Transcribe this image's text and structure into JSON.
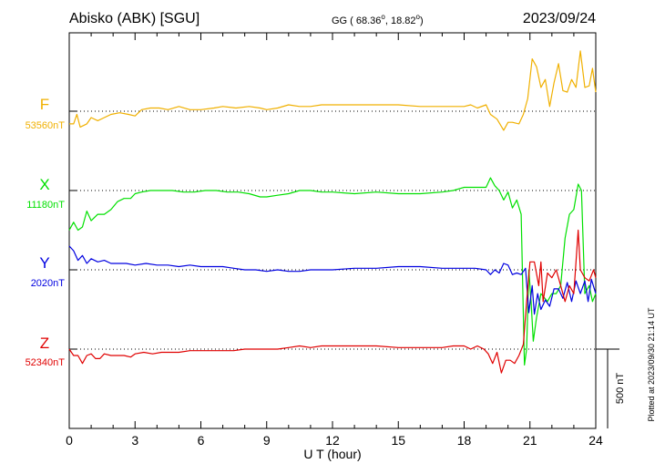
{
  "header": {
    "station": "Abisko (ABK)  [SGU]",
    "coords_prefix": "GG ( 68.36",
    "coords_mid": ",  18.82",
    "coords_suffix": ")",
    "degree": "o",
    "date": "2023/09/24"
  },
  "footer": {
    "plotted": "Plotted at 2023/09/30 21:14 UT",
    "scale_label": "500 nT"
  },
  "chart_data": {
    "type": "line",
    "title": "",
    "xlabel": "U T (hour)",
    "ylabel": "",
    "xlim": [
      0,
      24
    ],
    "x_ticks": [
      "0",
      "3",
      "6",
      "9",
      "12",
      "15",
      "18",
      "21",
      "24"
    ],
    "scale_bar_nT": 500,
    "grid": "dotted horizontal baselines, vertical tick marks every 3 h",
    "series": [
      {
        "name": "F",
        "baseline_label": "53560nT",
        "baseline_nT": 53560,
        "color": "#f0b000",
        "points": [
          [
            0,
            -80
          ],
          [
            0.2,
            -80
          ],
          [
            0.35,
            -20
          ],
          [
            0.5,
            -100
          ],
          [
            0.8,
            -80
          ],
          [
            1.0,
            -40
          ],
          [
            1.3,
            -60
          ],
          [
            1.6,
            -40
          ],
          [
            1.9,
            -20
          ],
          [
            2.3,
            -10
          ],
          [
            2.7,
            -20
          ],
          [
            3.0,
            -30
          ],
          [
            3.3,
            10
          ],
          [
            3.7,
            20
          ],
          [
            4.1,
            20
          ],
          [
            4.5,
            10
          ],
          [
            5.0,
            30
          ],
          [
            5.5,
            10
          ],
          [
            6.0,
            10
          ],
          [
            6.6,
            20
          ],
          [
            7.0,
            30
          ],
          [
            7.6,
            20
          ],
          [
            8.2,
            30
          ],
          [
            8.7,
            20
          ],
          [
            9.0,
            10
          ],
          [
            9.5,
            20
          ],
          [
            10.0,
            40
          ],
          [
            10.5,
            30
          ],
          [
            11.0,
            30
          ],
          [
            11.5,
            40
          ],
          [
            12.0,
            40
          ],
          [
            13,
            40
          ],
          [
            14,
            40
          ],
          [
            15,
            40
          ],
          [
            16,
            30
          ],
          [
            17,
            30
          ],
          [
            18,
            30
          ],
          [
            18.3,
            40
          ],
          [
            18.6,
            20
          ],
          [
            19.0,
            40
          ],
          [
            19.2,
            -20
          ],
          [
            19.5,
            -50
          ],
          [
            19.8,
            -120
          ],
          [
            20.0,
            -70
          ],
          [
            20.2,
            -70
          ],
          [
            20.5,
            -80
          ],
          [
            20.7,
            -20
          ],
          [
            20.9,
            80
          ],
          [
            21.1,
            330
          ],
          [
            21.3,
            280
          ],
          [
            21.5,
            150
          ],
          [
            21.7,
            200
          ],
          [
            21.9,
            30
          ],
          [
            22.1,
            180
          ],
          [
            22.3,
            300
          ],
          [
            22.5,
            130
          ],
          [
            22.7,
            120
          ],
          [
            22.9,
            200
          ],
          [
            23.1,
            150
          ],
          [
            23.3,
            380
          ],
          [
            23.5,
            150
          ],
          [
            23.7,
            160
          ],
          [
            23.85,
            270
          ],
          [
            24.0,
            120
          ]
        ]
      },
      {
        "name": "X",
        "baseline_label": "11180nT",
        "baseline_nT": 11180,
        "color": "#00e000",
        "points": [
          [
            0,
            -250
          ],
          [
            0.2,
            -200
          ],
          [
            0.4,
            -250
          ],
          [
            0.6,
            -230
          ],
          [
            0.8,
            -130
          ],
          [
            1.0,
            -190
          ],
          [
            1.3,
            -150
          ],
          [
            1.6,
            -150
          ],
          [
            1.9,
            -120
          ],
          [
            2.2,
            -70
          ],
          [
            2.5,
            -50
          ],
          [
            2.8,
            -50
          ],
          [
            3.0,
            -20
          ],
          [
            3.3,
            -10
          ],
          [
            3.7,
            0
          ],
          [
            4.2,
            0
          ],
          [
            4.7,
            0
          ],
          [
            5.2,
            -10
          ],
          [
            5.7,
            -10
          ],
          [
            6.2,
            0
          ],
          [
            6.7,
            0
          ],
          [
            7.2,
            -10
          ],
          [
            7.7,
            -10
          ],
          [
            8.2,
            -20
          ],
          [
            8.7,
            -40
          ],
          [
            9.0,
            -40
          ],
          [
            9.5,
            -30
          ],
          [
            10.0,
            -20
          ],
          [
            10.5,
            0
          ],
          [
            11.0,
            0
          ],
          [
            11.5,
            -10
          ],
          [
            12.0,
            -10
          ],
          [
            13,
            -20
          ],
          [
            14,
            -10
          ],
          [
            15,
            -20
          ],
          [
            16,
            -20
          ],
          [
            17,
            -10
          ],
          [
            17.5,
            0
          ],
          [
            18,
            20
          ],
          [
            18.5,
            20
          ],
          [
            19.0,
            20
          ],
          [
            19.2,
            80
          ],
          [
            19.4,
            30
          ],
          [
            19.6,
            0
          ],
          [
            19.8,
            -60
          ],
          [
            20.0,
            -10
          ],
          [
            20.2,
            -110
          ],
          [
            20.4,
            -60
          ],
          [
            20.6,
            -150
          ],
          [
            20.75,
            -1100
          ],
          [
            20.85,
            -1000
          ],
          [
            20.95,
            -500
          ],
          [
            21.05,
            -700
          ],
          [
            21.15,
            -950
          ],
          [
            21.3,
            -800
          ],
          [
            21.5,
            -650
          ],
          [
            21.8,
            -700
          ],
          [
            22.0,
            -650
          ],
          [
            22.2,
            -650
          ],
          [
            22.4,
            -600
          ],
          [
            22.6,
            -300
          ],
          [
            22.8,
            -150
          ],
          [
            23.0,
            -120
          ],
          [
            23.2,
            40
          ],
          [
            23.35,
            0
          ],
          [
            23.5,
            -650
          ],
          [
            23.7,
            -600
          ],
          [
            23.85,
            -700
          ],
          [
            24.0,
            -650
          ]
        ]
      },
      {
        "name": "Y",
        "baseline_label": "2020nT",
        "baseline_nT": 2020,
        "color": "#0000e0",
        "points": [
          [
            0,
            150
          ],
          [
            0.2,
            120
          ],
          [
            0.4,
            60
          ],
          [
            0.6,
            90
          ],
          [
            0.8,
            40
          ],
          [
            1.0,
            70
          ],
          [
            1.3,
            50
          ],
          [
            1.6,
            60
          ],
          [
            1.9,
            40
          ],
          [
            2.2,
            40
          ],
          [
            2.6,
            40
          ],
          [
            3.0,
            30
          ],
          [
            3.5,
            40
          ],
          [
            4.0,
            30
          ],
          [
            4.5,
            30
          ],
          [
            5.0,
            20
          ],
          [
            5.5,
            30
          ],
          [
            6.0,
            20
          ],
          [
            6.5,
            20
          ],
          [
            7.0,
            20
          ],
          [
            7.5,
            10
          ],
          [
            8.0,
            0
          ],
          [
            8.5,
            0
          ],
          [
            9.0,
            -10
          ],
          [
            9.5,
            0
          ],
          [
            10.0,
            -10
          ],
          [
            10.5,
            -10
          ],
          [
            11.0,
            0
          ],
          [
            11.5,
            0
          ],
          [
            12,
            0
          ],
          [
            13,
            10
          ],
          [
            14,
            10
          ],
          [
            15,
            20
          ],
          [
            16,
            20
          ],
          [
            17,
            10
          ],
          [
            18,
            10
          ],
          [
            18.5,
            10
          ],
          [
            19.0,
            0
          ],
          [
            19.2,
            -30
          ],
          [
            19.4,
            0
          ],
          [
            19.6,
            -20
          ],
          [
            19.8,
            40
          ],
          [
            20.0,
            30
          ],
          [
            20.2,
            -30
          ],
          [
            20.4,
            -20
          ],
          [
            20.6,
            -30
          ],
          [
            20.8,
            10
          ],
          [
            20.95,
            -270
          ],
          [
            21.1,
            -100
          ],
          [
            21.2,
            -280
          ],
          [
            21.35,
            -150
          ],
          [
            21.5,
            -250
          ],
          [
            21.7,
            -190
          ],
          [
            21.9,
            -230
          ],
          [
            22.1,
            -120
          ],
          [
            22.3,
            -120
          ],
          [
            22.5,
            -180
          ],
          [
            22.7,
            -80
          ],
          [
            22.9,
            -200
          ],
          [
            23.1,
            -70
          ],
          [
            23.3,
            -150
          ],
          [
            23.5,
            -70
          ],
          [
            23.65,
            -200
          ],
          [
            23.8,
            -60
          ],
          [
            24.0,
            -150
          ]
        ]
      },
      {
        "name": "Z",
        "baseline_label": "52340nT",
        "baseline_nT": 52340,
        "color": "#e00000",
        "points": [
          [
            0,
            0
          ],
          [
            0.2,
            -40
          ],
          [
            0.4,
            -40
          ],
          [
            0.6,
            -90
          ],
          [
            0.8,
            -40
          ],
          [
            1.0,
            -30
          ],
          [
            1.2,
            -60
          ],
          [
            1.4,
            -60
          ],
          [
            1.6,
            -30
          ],
          [
            1.9,
            -40
          ],
          [
            2.2,
            -40
          ],
          [
            2.5,
            -40
          ],
          [
            2.8,
            -50
          ],
          [
            3.0,
            -30
          ],
          [
            3.4,
            -20
          ],
          [
            3.8,
            -30
          ],
          [
            4.2,
            -20
          ],
          [
            4.6,
            -20
          ],
          [
            5.0,
            -20
          ],
          [
            5.5,
            -10
          ],
          [
            6.0,
            -10
          ],
          [
            6.5,
            -10
          ],
          [
            7.0,
            -10
          ],
          [
            7.5,
            -10
          ],
          [
            8,
            0
          ],
          [
            8.5,
            0
          ],
          [
            9,
            0
          ],
          [
            9.5,
            0
          ],
          [
            10,
            10
          ],
          [
            10.5,
            20
          ],
          [
            11,
            10
          ],
          [
            11.5,
            20
          ],
          [
            12,
            20
          ],
          [
            13,
            20
          ],
          [
            14,
            20
          ],
          [
            15,
            10
          ],
          [
            16,
            10
          ],
          [
            17,
            10
          ],
          [
            17.5,
            20
          ],
          [
            18,
            20
          ],
          [
            18.3,
            0
          ],
          [
            18.6,
            20
          ],
          [
            18.9,
            0
          ],
          [
            19.1,
            -30
          ],
          [
            19.3,
            -90
          ],
          [
            19.5,
            -20
          ],
          [
            19.7,
            -150
          ],
          [
            19.9,
            -70
          ],
          [
            20.1,
            -70
          ],
          [
            20.3,
            -90
          ],
          [
            20.5,
            -40
          ],
          [
            20.7,
            30
          ],
          [
            20.85,
            300
          ],
          [
            21.0,
            550
          ],
          [
            21.2,
            550
          ],
          [
            21.4,
            400
          ],
          [
            21.5,
            550
          ],
          [
            21.6,
            300
          ],
          [
            21.8,
            480
          ],
          [
            22.0,
            450
          ],
          [
            22.2,
            500
          ],
          [
            22.4,
            400
          ],
          [
            22.6,
            300
          ],
          [
            22.8,
            400
          ],
          [
            23.0,
            350
          ],
          [
            23.2,
            750
          ],
          [
            23.3,
            500
          ],
          [
            23.5,
            450
          ],
          [
            23.7,
            430
          ],
          [
            23.9,
            500
          ],
          [
            24.0,
            450
          ]
        ]
      }
    ]
  }
}
